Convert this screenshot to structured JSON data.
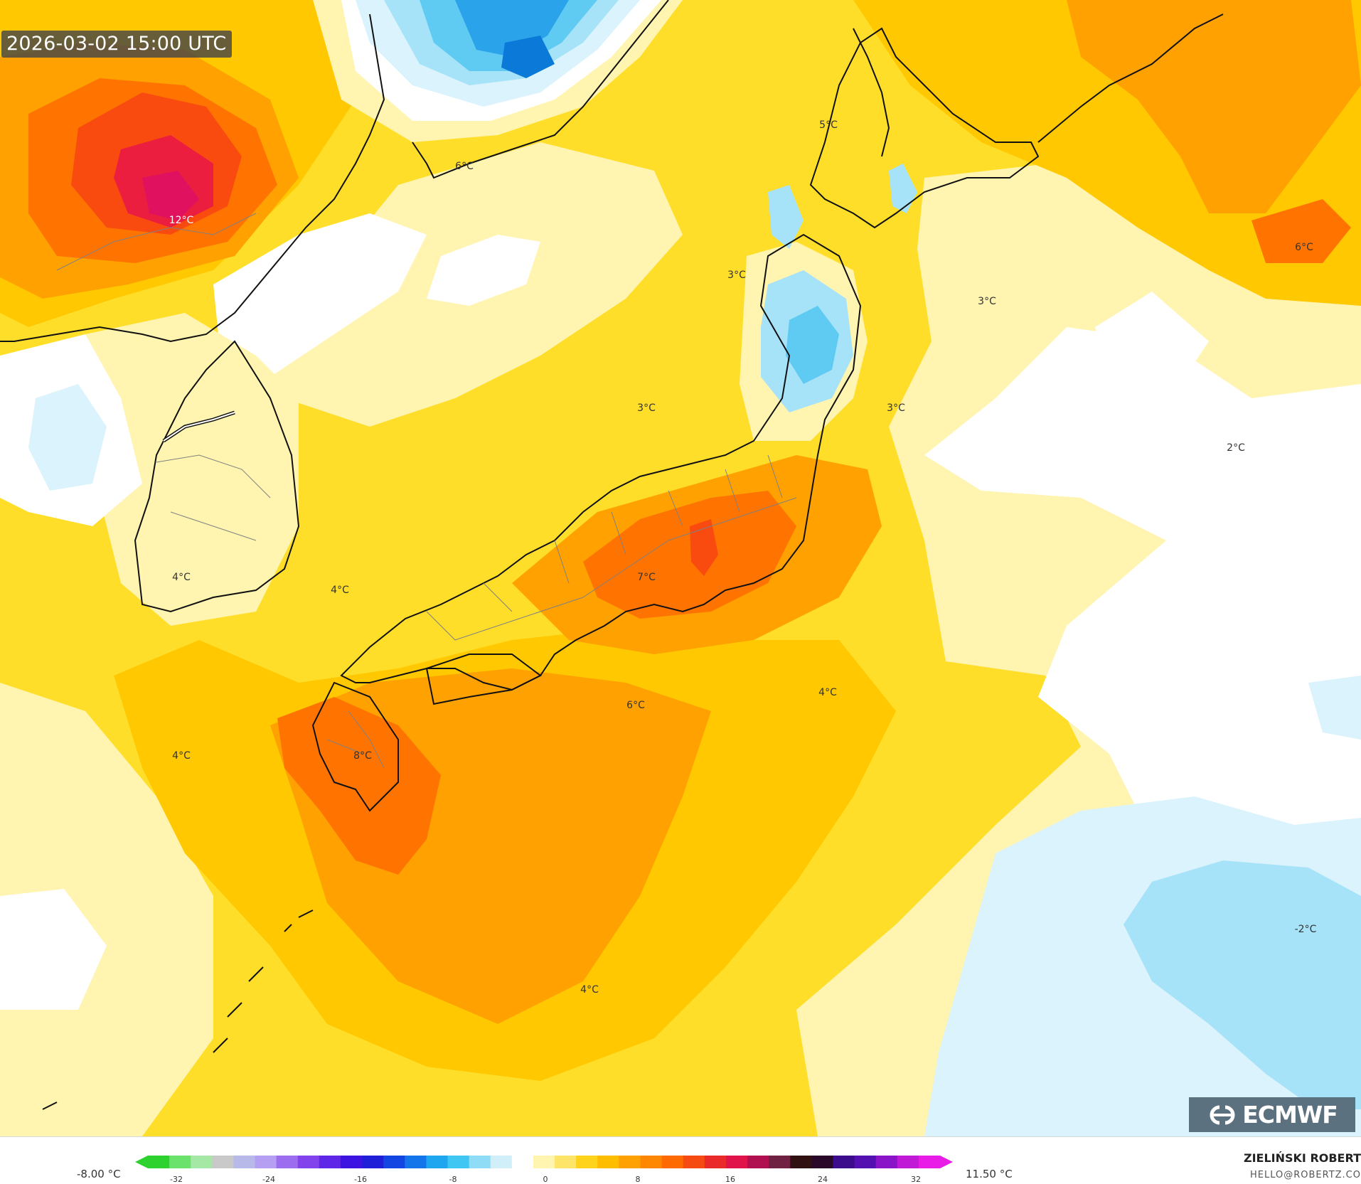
{
  "map": {
    "timestamp": "2026-03-02 15:00 UTC",
    "labels": [
      "12°C",
      "6°C",
      "5°C",
      "6°C",
      "3°C",
      "3°C",
      "3°C",
      "3°C",
      "2°C",
      "7°C",
      "4°C",
      "4°C",
      "4°C",
      "6°C",
      "4°C",
      "8°C",
      "4°C",
      "-2°C"
    ],
    "colors": {
      "white": "#ffffff",
      "pale_yellow": "#fff4b0",
      "yellow": "#ffde2a",
      "light_orange": "#ffc800",
      "orange": "#ffa100",
      "dark_orange": "#ff7400",
      "red_orange": "#f94a10",
      "red": "#ec1e40",
      "crimson": "#e0115f",
      "pale_blue": "#dbf3fc",
      "light_blue": "#a7e3f8",
      "sky_blue": "#5fcaf2",
      "blue": "#2aa3ea",
      "deep_blue": "#0a79d8",
      "coastline": "#111111",
      "border": "#808080"
    }
  },
  "logo": {
    "text": "ECMWF",
    "icon": "ecmwf-logo-icon"
  },
  "legend": {
    "min_label": "-8.00 °C",
    "max_label": "11.50 °C",
    "ticks": [
      "-32",
      "-24",
      "-16",
      "-8",
      "0",
      "8",
      "16",
      "24",
      "32"
    ],
    "colors": [
      "#2ed22e",
      "#6be26b",
      "#a5e8a5",
      "#c9c9c9",
      "#b9b9e9",
      "#b49ff2",
      "#9d6df0",
      "#8243ec",
      "#5e26e6",
      "#3c13e0",
      "#1f1fd8",
      "#1245e2",
      "#1475ea",
      "#1ea7ef",
      "#40c6f3",
      "#8edcf5",
      "#d0eff9",
      "#ffffff",
      "#fff4b0",
      "#ffe46a",
      "#ffd21c",
      "#ffbd00",
      "#ffa100",
      "#ff8700",
      "#ff6a00",
      "#f54a12",
      "#ea2a2a",
      "#e0134a",
      "#b01050",
      "#702040",
      "#301010",
      "#2a082a",
      "#3c0c8c",
      "#5410b0",
      "#8a14c8",
      "#c01ad6",
      "#e81ce6"
    ]
  },
  "credits": {
    "author": "ZIELIŃSKI ROBERT",
    "email": "HELLO@ROBERTZ.CO"
  }
}
